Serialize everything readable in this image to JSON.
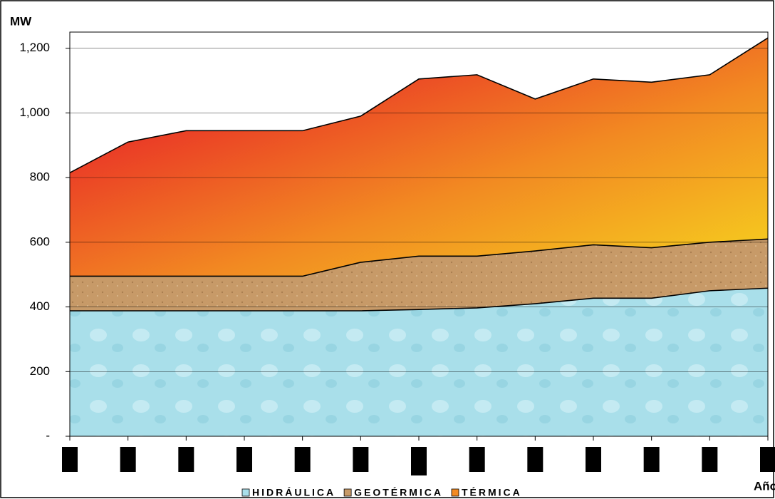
{
  "chart_data": {
    "type": "stacked-area",
    "y_label": "MW",
    "x_label": "Año",
    "categories": [
      null,
      null,
      null,
      null,
      null,
      null,
      null,
      null,
      null,
      null,
      null,
      null,
      null
    ],
    "series": [
      {
        "name": "HIDRÁULICA",
        "color": "#a9dfea",
        "values": [
          388,
          388,
          388,
          388,
          388,
          388,
          392,
          397,
          410,
          427,
          427,
          450,
          458
        ]
      },
      {
        "name": "GEOTÉRMICA",
        "color": "#c79a68",
        "values": [
          107,
          107,
          107,
          107,
          107,
          150,
          165,
          160,
          163,
          165,
          156,
          150,
          152
        ]
      },
      {
        "name": "TÉRMICA",
        "color": "#f28a22",
        "values": [
          320,
          415,
          450,
          450,
          450,
          452,
          548,
          561,
          470,
          513,
          512,
          518,
          622
        ]
      }
    ],
    "ylim": [
      0,
      1250
    ],
    "yticks": [
      {
        "value": 0,
        "label": "-"
      },
      {
        "value": 200,
        "label": "200"
      },
      {
        "value": 400,
        "label": "400"
      },
      {
        "value": 600,
        "label": "600"
      },
      {
        "value": 800,
        "label": "800"
      },
      {
        "value": 1000,
        "label": "1,000"
      },
      {
        "value": 1200,
        "label": "1,200"
      }
    ],
    "grid": true,
    "legend": "bottom"
  }
}
